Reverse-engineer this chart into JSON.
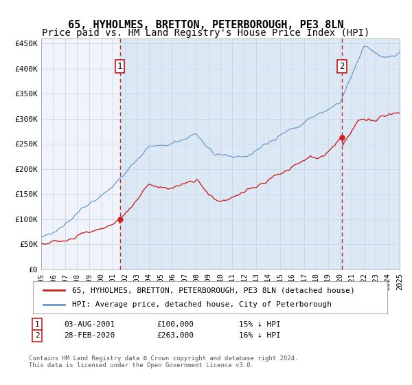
{
  "title": "65, HYHOLMES, BRETTON, PETERBOROUGH, PE3 8LN",
  "subtitle": "Price paid vs. HM Land Registry's House Price Index (HPI)",
  "legend_line1": "65, HYHOLMES, BRETTON, PETERBOROUGH, PE3 8LN (detached house)",
  "legend_line2": "HPI: Average price, detached house, City of Peterborough",
  "footnote": "Contains HM Land Registry data © Crown copyright and database right 2024.\nThis data is licensed under the Open Government Licence v3.0.",
  "purchase1_date": "03-AUG-2001",
  "purchase1_price": 100000,
  "purchase1_label": "15% ↓ HPI",
  "purchase1_x": 2001.583,
  "purchase2_date": "28-FEB-2020",
  "purchase2_price": 263000,
  "purchase2_label": "16% ↓ HPI",
  "purchase2_x": 2020.167,
  "xmin": 1995,
  "xmax": 2025,
  "ymin": 0,
  "ymax": 460000,
  "yticks": [
    0,
    50000,
    100000,
    150000,
    200000,
    250000,
    300000,
    350000,
    400000,
    450000
  ],
  "ytick_labels": [
    "£0",
    "£50K",
    "£100K",
    "£150K",
    "£200K",
    "£250K",
    "£300K",
    "£350K",
    "£400K",
    "£450K"
  ],
  "fig_bg_color": "#ffffff",
  "plot_bg_color": "#f0f4fa",
  "shaded_bg_color": "#dce9f5",
  "grid_color": "#c8d8e8",
  "red_line_color": "#cc2222",
  "blue_line_color": "#6699cc",
  "vline_color": "#cc2222",
  "marker_color": "#cc2222",
  "title_fontsize": 11,
  "subtitle_fontsize": 10,
  "tick_fontsize": 8,
  "legend_fontsize": 8
}
